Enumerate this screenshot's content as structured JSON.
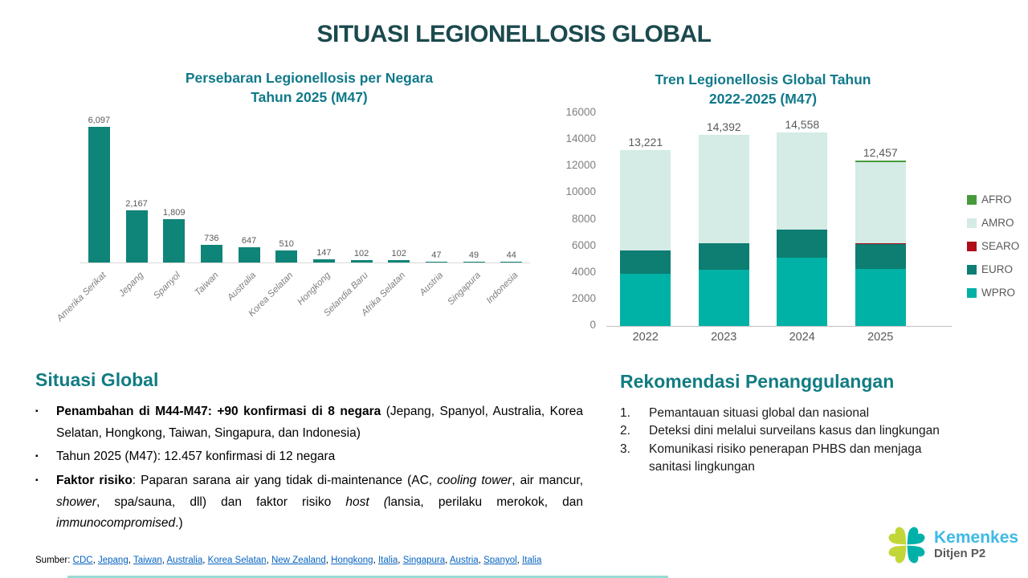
{
  "title": "SITUASI LEGIONELLOSIS GLOBAL",
  "colors": {
    "title": "#1b4a4e",
    "chart_title": "#11798a",
    "section_heading": "#117c82",
    "left_bar": "#0f8478",
    "axis_label": "#7f7f7f",
    "value_label": "#595959",
    "link": "#0563c1",
    "afro": "#479a3c",
    "amro": "#d4ebe6",
    "searo": "#b00d18",
    "euro": "#0e7d72",
    "wpro": "#00b2a5",
    "logo_teal": "#00b1a9",
    "logo_lime": "#c3d639",
    "logo_blue": "#3fb9e5"
  },
  "chart_data": [
    {
      "type": "bar",
      "title": "Persebaran Legionellosis per Negara Tahun 2025 (M47)",
      "title_lines": [
        "Persebaran Legionellosis per Negara",
        "Tahun 2025 (M47)"
      ],
      "categories": [
        "Amerika Serikat",
        "Jepang",
        "Spanyol",
        "Taiwan",
        "Australia",
        "Korea Selatan",
        "Hongkong",
        "Selandia Baru",
        "Afrika Selatan",
        "Austria",
        "Singapura",
        "Indonesia"
      ],
      "values": [
        6097,
        2167,
        1809,
        736,
        647,
        510,
        147,
        102,
        102,
        47,
        49,
        44
      ],
      "value_labels": [
        "6,097",
        "2,167",
        "1,809",
        "736",
        "647",
        "510",
        "147",
        "102",
        "102",
        "47",
        "49",
        "44"
      ],
      "xlabel": "",
      "ylabel": "",
      "ylim": [
        0,
        6097
      ],
      "grid": false,
      "bar_color": "#0f8478"
    },
    {
      "type": "stacked-bar",
      "title": "Tren Legionellosis Global Tahun 2022-2025 (M47)",
      "title_lines": [
        "Tren Legionellosis Global Tahun",
        "2022-2025 (M47)"
      ],
      "categories": [
        "2022",
        "2023",
        "2024",
        "2025"
      ],
      "series": [
        {
          "name": "WPRO",
          "color": "#00b2a5",
          "values": [
            3900,
            4250,
            5150,
            4300
          ]
        },
        {
          "name": "EURO",
          "color": "#0e7d72",
          "values": [
            1750,
            2000,
            2100,
            1850
          ]
        },
        {
          "name": "SEARO",
          "color": "#b00d18",
          "values": [
            0,
            0,
            0,
            80
          ]
        },
        {
          "name": "AMRO",
          "color": "#d4ebe6",
          "values": [
            7571,
            8142,
            7308,
            6080
          ]
        },
        {
          "name": "AFRO",
          "color": "#479a3c",
          "values": [
            0,
            0,
            0,
            147
          ]
        }
      ],
      "totals": [
        13221,
        14392,
        14558,
        12457
      ],
      "totals_display": [
        "13,221",
        "14,392",
        "14,558",
        "12,457"
      ],
      "ylim": [
        0,
        16000
      ],
      "yticks": [
        0,
        2000,
        4000,
        6000,
        8000,
        10000,
        12000,
        14000,
        16000
      ],
      "grid": false,
      "legend": [
        "AFRO",
        "AMRO",
        "SEARO",
        "EURO",
        "WPRO"
      ],
      "legend_position": "right"
    }
  ],
  "situasi": {
    "heading": "Situasi Global",
    "bullet_glyph": "▪",
    "bullets": [
      [
        {
          "t": "Penambahan di M44-M47: +90 konfirmasi di 8 negara",
          "b": true
        },
        {
          "t": " (Jepang, Spanyol, Australia, Korea Selatan, Hongkong, Taiwan, Singapura, dan Indonesia)"
        }
      ],
      [
        {
          "t": "Tahun 2025 (M47): 12.457 konfirmasi di 12 negara"
        }
      ],
      [
        {
          "t": "Faktor risiko",
          "b": true
        },
        {
          "t": ": Paparan sarana air yang tidak di-maintenance (AC, "
        },
        {
          "t": "cooling tower",
          "i": true
        },
        {
          "t": ", air mancur, "
        },
        {
          "t": "shower",
          "i": true
        },
        {
          "t": ", spa/sauna, dll) dan faktor risiko "
        },
        {
          "t": "host",
          "i": true
        },
        {
          "t": " "
        },
        {
          "t": "(",
          "i": true
        },
        {
          "t": "lansia, perilaku merokok, dan "
        },
        {
          "t": "immunocompromised",
          "i": true
        },
        {
          "t": ".)"
        }
      ]
    ]
  },
  "rekomendasi": {
    "heading": "Rekomendasi Penanggulangan",
    "items": [
      "Pemantauan situasi global dan nasional",
      "Deteksi dini melalui surveilans kasus dan lingkungan",
      "Komunikasi risiko penerapan PHBS dan menjaga sanitasi lingkungan"
    ]
  },
  "source": {
    "label": "Sumber:",
    "links": [
      "CDC",
      "Jepang",
      "Taiwan",
      "Australia",
      "Korea Selatan",
      "New Zealand",
      "Hongkong",
      "Italia",
      "Singapura",
      "Austria",
      "Spanyol",
      "Italia"
    ]
  },
  "logo": {
    "brand": "Kemenkes",
    "sub": "Ditjen P2"
  }
}
